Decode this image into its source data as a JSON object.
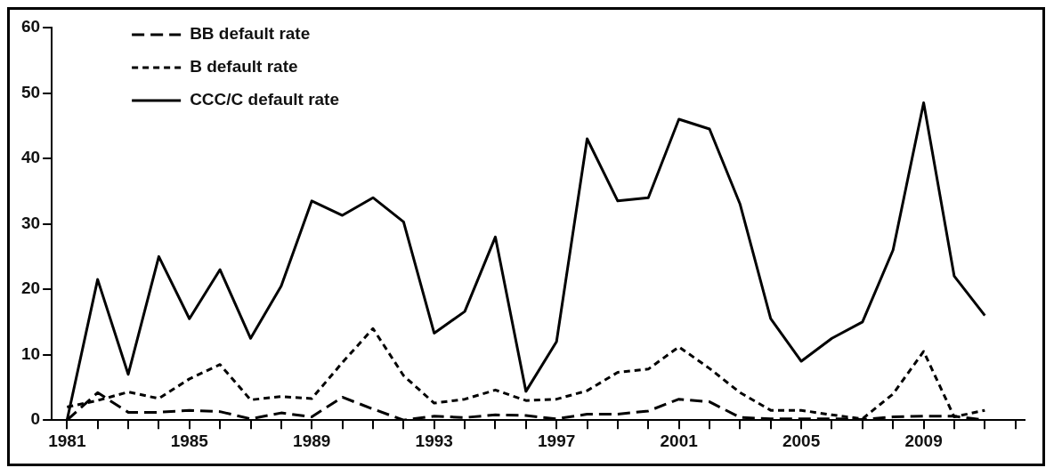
{
  "chart_data": {
    "type": "line",
    "x": [
      1981,
      1982,
      1983,
      1984,
      1985,
      1986,
      1987,
      1988,
      1989,
      1990,
      1991,
      1992,
      1993,
      1994,
      1995,
      1996,
      1997,
      1998,
      1999,
      2000,
      2001,
      2002,
      2003,
      2004,
      2005,
      2006,
      2007,
      2008,
      2009,
      2010,
      2011
    ],
    "series": [
      {
        "name": "BB default rate",
        "color": "#000000",
        "line_style": "dashed",
        "values": [
          0,
          4.2,
          1.2,
          1.2,
          1.5,
          1.3,
          0.2,
          1.1,
          0.5,
          3.5,
          1.7,
          0,
          0.6,
          0.4,
          0.8,
          0.7,
          0.2,
          0.9,
          0.9,
          1.4,
          3.2,
          2.8,
          0.4,
          0.2,
          0.2,
          0.2,
          0.1,
          0.5,
          0.6,
          0.6,
          0
        ]
      },
      {
        "name": "B default rate",
        "color": "#000000",
        "line_style": "dotted",
        "values": [
          2,
          3,
          4.3,
          3.3,
          6.3,
          8.5,
          3.1,
          3.6,
          3.3,
          8.8,
          14,
          6.8,
          2.6,
          3.2,
          4.6,
          3,
          3.2,
          4.5,
          7.3,
          7.8,
          11.2,
          7.9,
          4.2,
          1.5,
          1.5,
          0.8,
          0.2,
          4,
          10.5,
          0.5,
          1.5
        ]
      },
      {
        "name": "CCC/C default rate",
        "color": "#000000",
        "line_style": "solid",
        "values": [
          0,
          21.5,
          7,
          25,
          15.5,
          23,
          12.5,
          20.5,
          33.5,
          31.3,
          34,
          30.3,
          13.3,
          16.6,
          28,
          4.4,
          12,
          43,
          33.5,
          34,
          46,
          44.5,
          33,
          15.5,
          9,
          12.5,
          15,
          26,
          48.5,
          22,
          16
        ]
      }
    ],
    "xlim": [
      1980.5,
      2012.3
    ],
    "xticks": [
      1981,
      {
        "value": 1982,
        "label": null
      },
      {
        "value": 1983,
        "label": null
      },
      {
        "value": 1984,
        "label": null
      },
      1985,
      {
        "value": 1986,
        "label": null
      },
      {
        "value": 1987,
        "label": null
      },
      {
        "value": 1988,
        "label": null
      },
      1989,
      {
        "value": 1990,
        "label": null
      },
      {
        "value": 1991,
        "label": null
      },
      {
        "value": 1992,
        "label": null
      },
      1993,
      {
        "value": 1994,
        "label": null
      },
      {
        "value": 1995,
        "label": null
      },
      {
        "value": 1996,
        "label": null
      },
      1997,
      {
        "value": 1998,
        "label": null
      },
      {
        "value": 1999,
        "label": null
      },
      {
        "value": 2000,
        "label": null
      },
      2001,
      {
        "value": 2002,
        "label": null
      },
      {
        "value": 2003,
        "label": null
      },
      {
        "value": 2004,
        "label": null
      },
      2005,
      {
        "value": 2006,
        "label": null
      },
      {
        "value": 2007,
        "label": null
      },
      {
        "value": 2008,
        "label": null
      },
      2009,
      {
        "value": 2010,
        "label": null
      },
      {
        "value": 2011,
        "label": null
      },
      {
        "value": 2012,
        "label": null
      }
    ],
    "ylim": [
      0,
      60
    ],
    "yticks": [
      0,
      10,
      20,
      30,
      40,
      50,
      60
    ],
    "grid": false,
    "legend": "top left",
    "marker": "none"
  }
}
